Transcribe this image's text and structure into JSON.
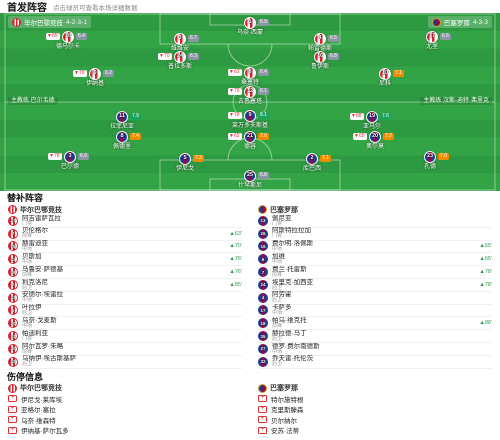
{
  "header": {
    "title": "首发阵容",
    "hint": "点击球员可查看本场详细数据"
  },
  "sections": {
    "subs_title": "替补阵容",
    "injury_title": "伤停信息"
  },
  "teams": {
    "home": {
      "name": "毕尔巴鄂竞技",
      "formation": "4-2-3-1",
      "coach": "主教练 巴尔韦德"
    },
    "away": {
      "name": "巴塞罗那",
      "formation": "4-3-3",
      "coach": "主教练 汉斯-迪特·弗里克"
    }
  },
  "colors": {
    "home_primary": "#d9232e",
    "away_primary": "#1b3b94",
    "away_secondary": "#a8003f",
    "pitch": "#2d9940",
    "sub_in": "#2b9a48",
    "sub_out": "#e03131",
    "rating_high": "#1aa35a",
    "rating_mid": "#f08c00",
    "rating_low": "#8a96a3"
  },
  "home_players": [
    {
      "num": "1",
      "name": "乌奈·西蒙",
      "rating": "6.9"
    },
    {
      "num": "18",
      "name": "德马尔卡",
      "rating": "6.4",
      "event": "▼85'"
    },
    {
      "num": "3",
      "name": "维维安",
      "rating": "6.7"
    },
    {
      "num": "4",
      "name": "帕雷德斯",
      "rating": "6.5"
    },
    {
      "num": "17",
      "name": "尤里",
      "rating": "6.6"
    },
    {
      "num": "24",
      "name": "普拉多斯",
      "rating": "6.3",
      "event": "▼70'"
    },
    {
      "num": "16",
      "name": "鲁伊斯",
      "rating": "6.8"
    },
    {
      "num": "9",
      "name": "伊纳基",
      "rating": "6.2",
      "event": "▼76'"
    },
    {
      "num": "8",
      "name": "桑塞特",
      "rating": "6.4",
      "event": "▼63'"
    },
    {
      "num": "10",
      "name": "尼科",
      "rating": "7.1"
    },
    {
      "num": "12",
      "name": "古鲁塞塔",
      "rating": "6.1",
      "event": "▼76'"
    }
  ],
  "away_players": [
    {
      "num": "11",
      "name": "拉菲尼亚",
      "rating": "7.9"
    },
    {
      "num": "9",
      "name": "莱万多夫斯基",
      "rating": "8.1",
      "event": "▼78'"
    },
    {
      "num": "19",
      "name": "亚马尔",
      "rating": "7.6",
      "event": "▼88'"
    },
    {
      "num": "8",
      "name": "佩德里",
      "rating": "7.4"
    },
    {
      "num": "21",
      "name": "德容",
      "rating": "7.0",
      "event": "▼65'"
    },
    {
      "num": "20",
      "name": "奥尔莫",
      "rating": "7.2",
      "event": "▼65'"
    },
    {
      "num": "3",
      "name": "巴尔德",
      "rating": "6.9",
      "event": "▼78'"
    },
    {
      "num": "5",
      "name": "伊尼戈",
      "rating": "7.3"
    },
    {
      "num": "2",
      "name": "库巴西",
      "rating": "7.1"
    },
    {
      "num": "23",
      "name": "孔德",
      "rating": "7.0"
    },
    {
      "num": "25",
      "name": "什琴斯尼",
      "rating": "6.8"
    }
  ],
  "subs": {
    "home": [
      {
        "num": "27",
        "name": "阿吉雷萨瓦拉",
        "pos": "门将"
      },
      {
        "num": "7",
        "name": "贝伦格尔",
        "pos": "前锋",
        "in": "▲63'"
      },
      {
        "num": "15",
        "name": "赫雷迪亚",
        "pos": "中场",
        "in": "▲70'"
      },
      {
        "num": "11",
        "name": "贝斯加",
        "pos": "中场",
        "in": "▲76'"
      },
      {
        "num": "19",
        "name": "马鲁安·萨德基",
        "pos": "前锋",
        "in": "▲76'"
      },
      {
        "num": "2",
        "name": "利克洛尼",
        "pos": "后卫",
        "in": "▲85'"
      },
      {
        "num": "21",
        "name": "安德尔·埃雷拉",
        "pos": "中场"
      },
      {
        "num": "5",
        "name": "叶拉伊",
        "pos": "后卫"
      },
      {
        "num": "20",
        "name": "乌奈·戈麦斯",
        "pos": "中场"
      },
      {
        "num": "13",
        "name": "帕迪利亚",
        "pos": "门将"
      },
      {
        "num": "30",
        "name": "阿尔瓦罗·朱略",
        "pos": "前锋"
      },
      {
        "num": "22",
        "name": "乌纳伊·埃古斯基萨",
        "pos": "后卫"
      }
    ],
    "away": [
      {
        "num": "13",
        "name": "佩尼亚",
        "pos": "门将"
      },
      {
        "num": "26",
        "name": "阿斯特拉拉加",
        "pos": "门将"
      },
      {
        "num": "16",
        "name": "费尔明·洛佩斯",
        "pos": "中场",
        "in": "▲65'"
      },
      {
        "num": "6",
        "name": "加维",
        "pos": "中场",
        "in": "▲65'"
      },
      {
        "num": "7",
        "name": "费兰·托雷斯",
        "pos": "前锋",
        "in": "▲78'"
      },
      {
        "num": "24",
        "name": "埃里克·加西亚",
        "pos": "后卫",
        "in": "▲78'"
      },
      {
        "num": "4",
        "name": "阿劳霍",
        "pos": "后卫"
      },
      {
        "num": "17",
        "name": "卡萨多",
        "pos": "中场"
      },
      {
        "num": "18",
        "name": "帕乌·维克托",
        "pos": "前锋",
        "in": "▲88'"
      },
      {
        "num": "35",
        "name": "赫拉德·马丁",
        "pos": "后卫"
      },
      {
        "num": "27",
        "name": "德罗·费尔南德斯",
        "pos": "中场"
      },
      {
        "num": "32",
        "name": "乔夫雷·托伦茨",
        "pos": "后卫"
      }
    ]
  },
  "injuries": {
    "home": [
      {
        "name": "伊尼戈·莱库埃"
      },
      {
        "name": "亚格尔·塞拉"
      },
      {
        "name": "乌奈·维森特"
      },
      {
        "name": "伊纳基·萨尔瓦多"
      }
    ],
    "away": [
      {
        "name": "特尔施特根"
      },
      {
        "name": "克里斯滕森"
      },
      {
        "name": "贝尔纳尔"
      },
      {
        "name": "安苏·法蒂"
      }
    ]
  }
}
